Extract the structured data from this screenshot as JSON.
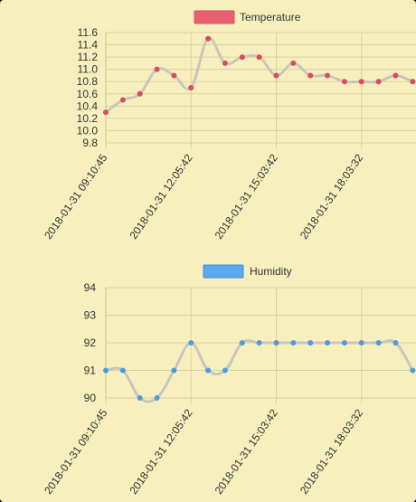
{
  "chart_data": [
    {
      "type": "line",
      "categories": [
        "2018-01-31 09:10:45",
        "",
        "",
        "",
        "",
        "2018-01-31 12:05:42",
        "",
        "",
        "",
        "",
        "2018-01-31 15:03:42",
        "",
        "",
        "",
        "",
        "2018-01-31 18:03:32",
        "",
        "",
        ""
      ],
      "x_tick_labels": [
        "2018-01-31 09:10:45",
        "2018-01-31 12:05:42",
        "2018-01-31 15:03:42",
        "2018-01-31 18:03:32"
      ],
      "series": [
        {
          "name": "Temperature",
          "values": [
            10.3,
            10.5,
            10.6,
            11.0,
            10.9,
            10.7,
            11.5,
            11.1,
            11.2,
            11.2,
            10.9,
            11.1,
            10.9,
            10.9,
            10.8,
            10.8,
            10.8,
            10.9,
            10.8
          ]
        }
      ],
      "ylim": [
        9.8,
        11.6
      ],
      "y_ticks": [
        "11.6",
        "11.4",
        "11.2",
        "11.0",
        "10.8",
        "10.6",
        "10.4",
        "10.2",
        "10.0",
        "9.8"
      ],
      "grid": true,
      "legend": "top-center",
      "colors": {
        "line": "#c9c7bd",
        "point": "#dc4b5c",
        "legend_fill": "#e8606f",
        "legend_border": "#dc4b5c"
      }
    },
    {
      "type": "line",
      "categories": [
        "2018-01-31 09:10:45",
        "",
        "",
        "",
        "",
        "2018-01-31 12:05:42",
        "",
        "",
        "",
        "",
        "2018-01-31 15:03:42",
        "",
        "",
        "",
        "",
        "2018-01-31 18:03:32",
        "",
        "",
        ""
      ],
      "x_tick_labels": [
        "2018-01-31 09:10:45",
        "2018-01-31 12:05:42",
        "2018-01-31 15:03:42",
        "2018-01-31 18:03:32"
      ],
      "series": [
        {
          "name": "Humidity",
          "values": [
            91,
            91,
            90,
            90,
            91,
            92,
            91,
            91,
            92,
            92,
            92,
            92,
            92,
            92,
            92,
            92,
            92,
            92,
            91
          ]
        }
      ],
      "ylim": [
        90,
        94
      ],
      "y_ticks": [
        "94",
        "93",
        "92",
        "91",
        "90"
      ],
      "grid": true,
      "legend": "top-center",
      "colors": {
        "line": "#c9c7bd",
        "point": "#4a9ee0",
        "legend_fill": "#5aaaf0",
        "legend_border": "#3a8ed6"
      }
    }
  ]
}
